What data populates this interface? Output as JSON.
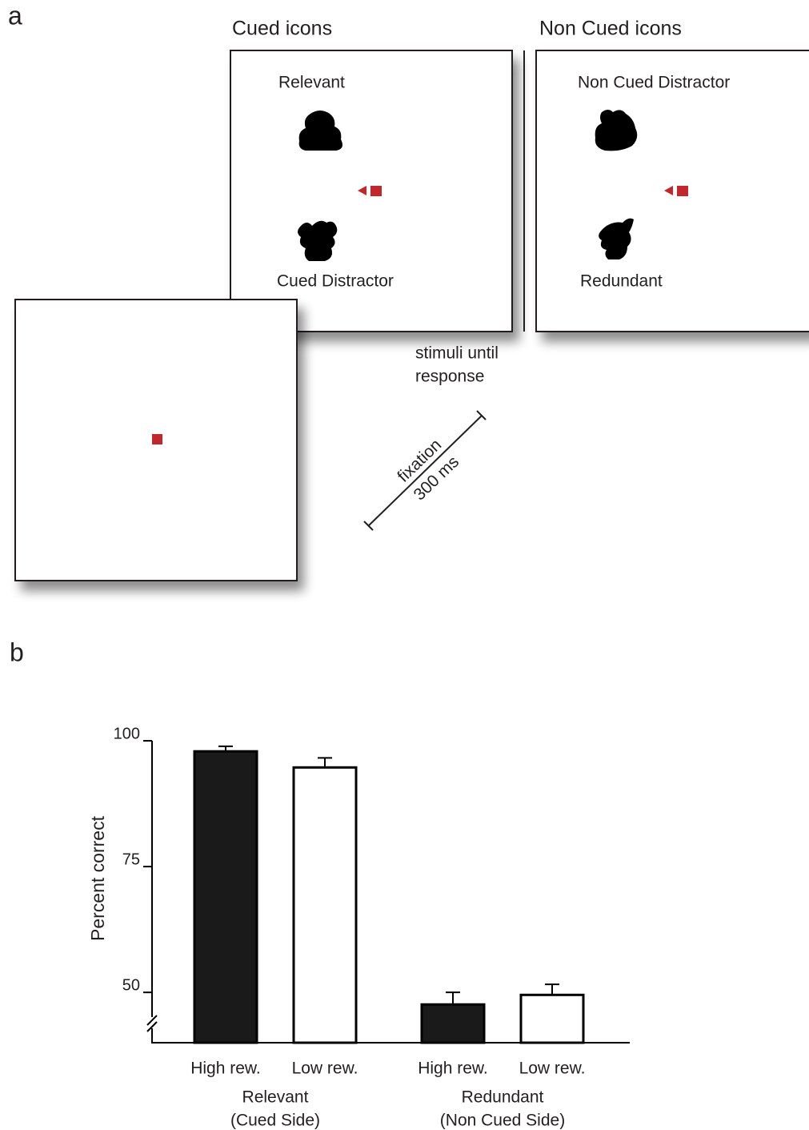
{
  "panel_a": {
    "label": "a",
    "cued_title": "Cued icons",
    "non_cued_title": "Non Cued icons",
    "relevant": "Relevant",
    "cued_distractor": "Cued Distractor",
    "non_cued_distractor": "Non Cued Distractor",
    "redundant": "Redundant",
    "stimuli_label": [
      "stimuli until",
      "response"
    ],
    "fixation_label": [
      "fixation",
      "300 ms"
    ]
  },
  "panel_b_label": "b",
  "chart_data": {
    "type": "bar",
    "ylabel": "Percent correct",
    "categories": [
      "High rew.",
      "Low rew.",
      "High rew.",
      "Low rew."
    ],
    "groups": [
      [
        "Relevant",
        "(Cued Side)"
      ],
      [
        "Redundant",
        "(Non Cued Side)"
      ]
    ],
    "values": [
      97.9,
      94.7,
      47.6,
      49.5
    ],
    "errors": [
      1.0,
      1.9,
      2.4,
      2.1
    ],
    "colors": [
      "#1a1a1a",
      "#ffffff",
      "#1a1a1a",
      "#ffffff"
    ],
    "ylim": [
      40,
      100
    ],
    "yticks": [
      50,
      75,
      100
    ]
  }
}
